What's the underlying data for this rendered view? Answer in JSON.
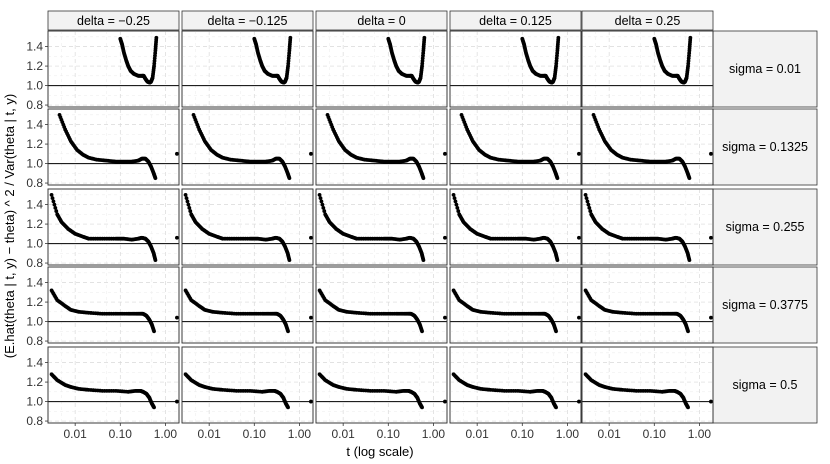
{
  "chart_data": {
    "type": "scatter",
    "facet": {
      "cols_label": [
        "delta = −0.25",
        "delta = −0.125",
        "delta = 0",
        "delta = 0.125",
        "delta = 0.25"
      ],
      "rows_label": [
        "sigma = 0.01",
        "sigma = 0.1325",
        "sigma = 0.255",
        "sigma = 0.3775",
        "sigma = 0.5"
      ]
    },
    "xlabel": "t (log scale)",
    "ylabel": "(E.hat(theta | t, y) − theta) ^ 2 / Var(theta | t, y)",
    "x_scale": "log10",
    "xlim": [
      0.0025,
      2.0
    ],
    "ylim": [
      0.78,
      1.56
    ],
    "x_ticks": [
      0.01,
      0.1,
      1.0
    ],
    "x_tick_labels": [
      "0.01",
      "0.10",
      "1.00"
    ],
    "y_ticks": [
      0.8,
      1.0,
      1.2,
      1.4
    ],
    "y_tick_labels": [
      "0.8",
      "1.0",
      "1.2",
      "1.4"
    ],
    "reference_line_y": 1.0,
    "grid": true,
    "point_color": "#000000",
    "rows": [
      {
        "curve": [
          [
            0.1,
            1.48
          ],
          [
            0.11,
            1.42
          ],
          [
            0.12,
            1.34
          ],
          [
            0.135,
            1.26
          ],
          [
            0.15,
            1.2
          ],
          [
            0.17,
            1.15
          ],
          [
            0.2,
            1.12
          ],
          [
            0.25,
            1.1
          ],
          [
            0.3,
            1.1
          ],
          [
            0.33,
            1.1
          ],
          [
            0.36,
            1.07
          ],
          [
            0.4,
            1.04
          ],
          [
            0.45,
            1.03
          ],
          [
            0.48,
            1.04
          ],
          [
            0.52,
            1.08
          ],
          [
            0.56,
            1.2
          ],
          [
            0.6,
            1.36
          ],
          [
            0.63,
            1.49
          ]
        ],
        "outlier": null
      },
      {
        "curve": [
          [
            0.0045,
            1.5
          ],
          [
            0.006,
            1.35
          ],
          [
            0.008,
            1.23
          ],
          [
            0.011,
            1.14
          ],
          [
            0.015,
            1.09
          ],
          [
            0.02,
            1.06
          ],
          [
            0.03,
            1.04
          ],
          [
            0.05,
            1.03
          ],
          [
            0.08,
            1.02
          ],
          [
            0.12,
            1.02
          ],
          [
            0.18,
            1.02
          ],
          [
            0.25,
            1.03
          ],
          [
            0.3,
            1.05
          ],
          [
            0.36,
            1.05
          ],
          [
            0.42,
            1.02
          ],
          [
            0.48,
            0.97
          ],
          [
            0.55,
            0.9
          ],
          [
            0.6,
            0.85
          ]
        ],
        "outlier": [
          1.8,
          1.1
        ]
      },
      {
        "curve": [
          [
            0.003,
            1.5
          ],
          [
            0.004,
            1.3
          ],
          [
            0.005,
            1.22
          ],
          [
            0.007,
            1.15
          ],
          [
            0.01,
            1.1
          ],
          [
            0.015,
            1.07
          ],
          [
            0.02,
            1.05
          ],
          [
            0.04,
            1.05
          ],
          [
            0.08,
            1.05
          ],
          [
            0.12,
            1.05
          ],
          [
            0.18,
            1.04
          ],
          [
            0.25,
            1.05
          ],
          [
            0.3,
            1.06
          ],
          [
            0.36,
            1.05
          ],
          [
            0.42,
            1.02
          ],
          [
            0.48,
            0.97
          ],
          [
            0.55,
            0.9
          ],
          [
            0.6,
            0.83
          ]
        ],
        "outlier": [
          1.8,
          1.06
        ]
      },
      {
        "curve": [
          [
            0.003,
            1.32
          ],
          [
            0.004,
            1.22
          ],
          [
            0.006,
            1.16
          ],
          [
            0.008,
            1.12
          ],
          [
            0.012,
            1.1
          ],
          [
            0.02,
            1.09
          ],
          [
            0.04,
            1.08
          ],
          [
            0.08,
            1.08
          ],
          [
            0.15,
            1.08
          ],
          [
            0.22,
            1.08
          ],
          [
            0.28,
            1.08
          ],
          [
            0.32,
            1.08
          ],
          [
            0.38,
            1.06
          ],
          [
            0.44,
            1.02
          ],
          [
            0.5,
            0.97
          ],
          [
            0.56,
            0.9
          ]
        ],
        "outlier": [
          1.8,
          1.04
        ]
      },
      {
        "curve": [
          [
            0.003,
            1.28
          ],
          [
            0.004,
            1.22
          ],
          [
            0.006,
            1.17
          ],
          [
            0.008,
            1.15
          ],
          [
            0.012,
            1.13
          ],
          [
            0.02,
            1.12
          ],
          [
            0.04,
            1.11
          ],
          [
            0.08,
            1.11
          ],
          [
            0.15,
            1.1
          ],
          [
            0.22,
            1.11
          ],
          [
            0.28,
            1.11
          ],
          [
            0.32,
            1.1
          ],
          [
            0.38,
            1.08
          ],
          [
            0.44,
            1.04
          ],
          [
            0.5,
            0.98
          ],
          [
            0.56,
            0.94
          ]
        ],
        "outlier": [
          1.8,
          1.0
        ]
      }
    ]
  }
}
